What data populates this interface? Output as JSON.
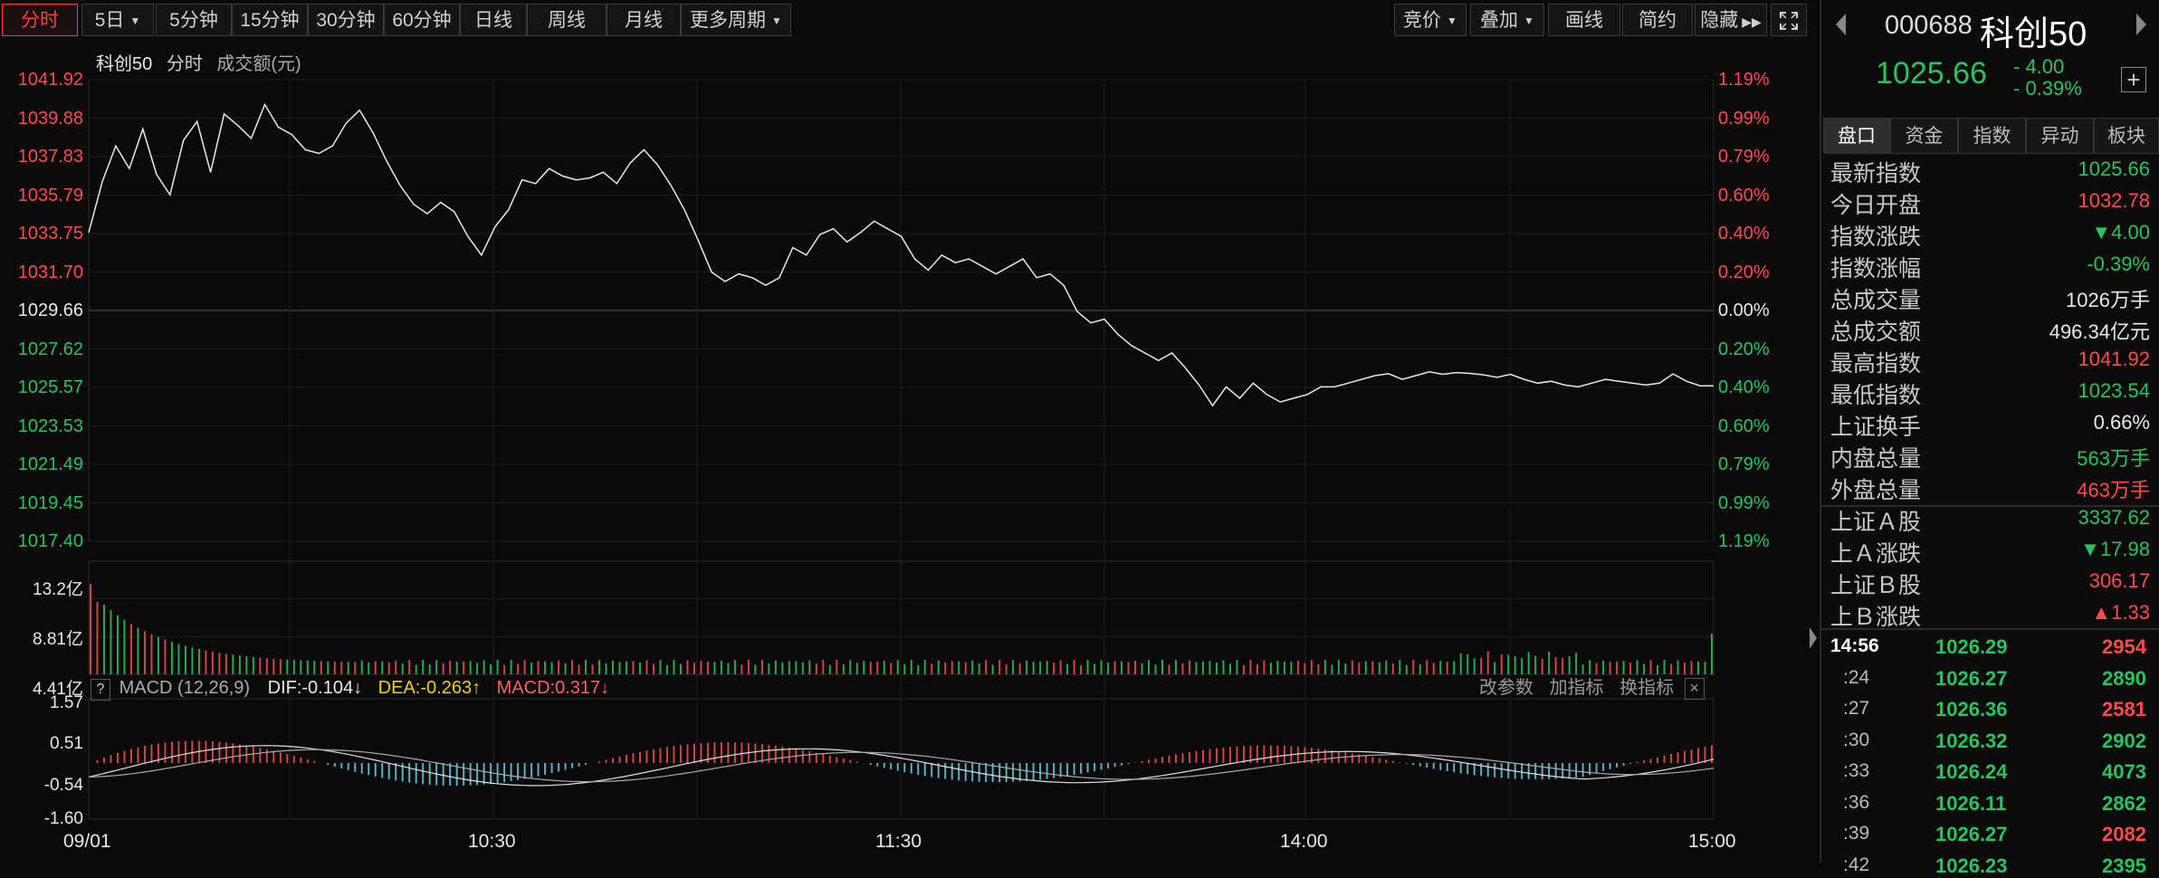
{
  "toolbar": {
    "tabs": [
      "分时",
      "5日",
      "5分钟",
      "15分钟",
      "30分钟",
      "60分钟",
      "日线",
      "周线",
      "月线",
      "更多周期"
    ],
    "right": [
      "竞价",
      "叠加",
      "画线",
      "简约",
      "隐藏"
    ]
  },
  "chart_header": {
    "name": "科创50",
    "mode": "分时",
    "vol_label": "成交额(元)"
  },
  "price_axis": {
    "left": [
      "1041.92",
      "1039.88",
      "1037.83",
      "1035.79",
      "1033.75",
      "1031.70",
      "1029.66",
      "1027.62",
      "1025.57",
      "1023.53",
      "1021.49",
      "1019.45",
      "1017.40"
    ],
    "right": [
      "1.19%",
      "0.99%",
      "0.79%",
      "0.60%",
      "0.40%",
      "0.20%",
      "0.00%",
      "0.20%",
      "0.40%",
      "0.60%",
      "0.79%",
      "0.99%",
      "1.19%"
    ]
  },
  "volume_axis": [
    "13.2亿",
    "8.81亿",
    "4.41亿"
  ],
  "macd": {
    "help": "?",
    "label": "MACD (12,26,9)",
    "dif": "DIF:-0.104",
    "dea": "DEA:-0.263",
    "macd_val": "MACD:0.317",
    "axis": [
      "1.57",
      "0.51",
      "-0.54",
      "-1.60"
    ],
    "actions": [
      "改参数",
      "加指标",
      "换指标"
    ]
  },
  "time_axis": [
    "09/01",
    "10:30",
    "11:30",
    "14:00",
    "15:00"
  ],
  "colors": {
    "up": "#ff4a4a",
    "down": "#22c55e",
    "bg": "#0a0a0a",
    "dif": "#e0e0e0",
    "dea": "#f0d000"
  },
  "chart_data": {
    "type": "line",
    "title": "科创50 分时",
    "x": [
      "09:30",
      "09:32",
      "09:34",
      "09:36",
      "09:38",
      "09:40",
      "09:42",
      "09:44",
      "09:46",
      "09:48",
      "09:50",
      "09:52",
      "09:54",
      "09:56",
      "09:58",
      "10:00",
      "10:02",
      "10:04",
      "10:06",
      "10:08",
      "10:10",
      "10:12",
      "10:14",
      "10:16",
      "10:18",
      "10:20",
      "10:22",
      "10:24",
      "10:26",
      "10:28",
      "10:30",
      "10:32",
      "10:34",
      "10:36",
      "10:38",
      "10:40",
      "10:42",
      "10:44",
      "10:46",
      "10:48",
      "10:50",
      "10:52",
      "10:54",
      "10:56",
      "10:58",
      "11:00",
      "11:02",
      "11:04",
      "11:06",
      "11:08",
      "11:10",
      "11:12",
      "11:14",
      "11:16",
      "11:18",
      "11:20",
      "11:22",
      "11:24",
      "11:26",
      "11:28",
      "11:30",
      "13:02",
      "13:04",
      "13:06",
      "13:08",
      "13:10",
      "13:12",
      "13:14",
      "13:16",
      "13:18",
      "13:20",
      "13:22",
      "13:24",
      "13:26",
      "13:28",
      "13:30",
      "13:32",
      "13:34",
      "13:36",
      "13:38",
      "13:40",
      "13:42",
      "13:44",
      "13:46",
      "13:48",
      "13:50",
      "13:52",
      "13:54",
      "13:56",
      "13:58",
      "14:00",
      "14:02",
      "14:04",
      "14:06",
      "14:08",
      "14:10",
      "14:12",
      "14:14",
      "14:16",
      "14:18",
      "14:20",
      "14:22",
      "14:24",
      "14:26",
      "14:28",
      "14:30",
      "14:32",
      "14:34",
      "14:36",
      "14:38",
      "14:40",
      "14:42",
      "14:44",
      "14:46",
      "14:48",
      "14:50",
      "14:52",
      "14:54",
      "14:56",
      "14:58",
      "15:00"
    ],
    "series": [
      {
        "name": "科创50",
        "values": [
          1033.8,
          1036.5,
          1038.4,
          1037.2,
          1039.3,
          1036.9,
          1035.8,
          1038.7,
          1039.7,
          1037.0,
          1040.1,
          1039.5,
          1038.8,
          1040.6,
          1039.4,
          1039.0,
          1038.2,
          1038.0,
          1038.4,
          1039.6,
          1040.3,
          1039.1,
          1037.6,
          1036.3,
          1035.3,
          1034.8,
          1035.4,
          1034.9,
          1033.6,
          1032.6,
          1034.1,
          1035.0,
          1036.6,
          1036.4,
          1037.2,
          1036.8,
          1036.6,
          1036.7,
          1037.0,
          1036.4,
          1037.5,
          1038.2,
          1037.4,
          1036.3,
          1035.0,
          1033.4,
          1031.7,
          1031.2,
          1031.6,
          1031.4,
          1031.0,
          1031.4,
          1033.0,
          1032.6,
          1033.7,
          1034.0,
          1033.3,
          1033.8,
          1034.4,
          1034.0,
          1033.6,
          1032.4,
          1031.8,
          1032.6,
          1032.2,
          1032.4,
          1032.0,
          1031.6,
          1032.0,
          1032.4,
          1031.4,
          1031.6,
          1031.0,
          1029.6,
          1029.0,
          1029.2,
          1028.4,
          1027.8,
          1027.4,
          1027.0,
          1027.4,
          1026.6,
          1025.7,
          1024.6,
          1025.6,
          1025.0,
          1025.8,
          1025.2,
          1024.8,
          1025.0,
          1025.2,
          1025.6,
          1025.6,
          1025.8,
          1026.0,
          1026.2,
          1026.3,
          1026.0,
          1026.2,
          1026.4,
          1026.27,
          1026.36,
          1026.32,
          1026.24,
          1026.11,
          1026.27,
          1026.0,
          1025.8,
          1025.9,
          1025.7,
          1025.6,
          1025.8,
          1026.0,
          1025.9,
          1025.8,
          1025.7,
          1025.8,
          1026.29,
          1025.9,
          1025.66,
          1025.66
        ]
      }
    ],
    "xlabel": "",
    "ylabel": "",
    "ylim": [
      1017.4,
      1041.92
    ]
  },
  "panel": {
    "code": "000688",
    "name": "科创50",
    "price": "1025.66",
    "change": "- 4.00",
    "change_pct": "- 0.39%",
    "add": "+",
    "tabs": [
      "盘口",
      "资金",
      "指数",
      "异动",
      "板块"
    ],
    "rows": [
      {
        "label": "最新指数",
        "value": "1025.66",
        "color": "green"
      },
      {
        "label": "今日开盘",
        "value": "1032.78",
        "color": "red"
      },
      {
        "label": "指数涨跌",
        "value": "▼4.00",
        "color": "green"
      },
      {
        "label": "指数涨幅",
        "value": "-0.39%",
        "color": "green"
      },
      {
        "label": "总成交量",
        "value": "1026万手",
        "color": "white"
      },
      {
        "label": "总成交额",
        "value": "496.34亿元",
        "color": "white"
      },
      {
        "label": "最高指数",
        "value": "1041.92",
        "color": "red"
      },
      {
        "label": "最低指数",
        "value": "1023.54",
        "color": "green"
      },
      {
        "label": "上证换手",
        "value": "0.66%",
        "color": "white"
      },
      {
        "label": "内盘总量",
        "value": "563万手",
        "color": "green"
      },
      {
        "label": "外盘总量",
        "value": "463万手",
        "color": "red"
      },
      {
        "label": "上证Ａ股",
        "value": "3337.62",
        "color": "green"
      },
      {
        "label": "上Ａ涨跌",
        "value": "▼17.98",
        "color": "green"
      },
      {
        "label": "上证Ｂ股",
        "value": "306.17",
        "color": "red"
      },
      {
        "label": "上Ｂ涨跌",
        "value": "▲1.33",
        "color": "red"
      }
    ],
    "ticks": [
      {
        "time": "14:56",
        "price": "1026.29",
        "vol": "2954",
        "vcolor": "red"
      },
      {
        "time": ":24",
        "price": "1026.27",
        "vol": "2890",
        "vcolor": "green"
      },
      {
        "time": ":27",
        "price": "1026.36",
        "vol": "2581",
        "vcolor": "red"
      },
      {
        "time": ":30",
        "price": "1026.32",
        "vol": "2902",
        "vcolor": "green"
      },
      {
        "time": ":33",
        "price": "1026.24",
        "vol": "4073",
        "vcolor": "green"
      },
      {
        "time": ":36",
        "price": "1026.11",
        "vol": "2862",
        "vcolor": "green"
      },
      {
        "time": ":39",
        "price": "1026.27",
        "vol": "2082",
        "vcolor": "red"
      },
      {
        "time": ":42",
        "price": "1026.23",
        "vol": "2395",
        "vcolor": "green"
      }
    ]
  }
}
